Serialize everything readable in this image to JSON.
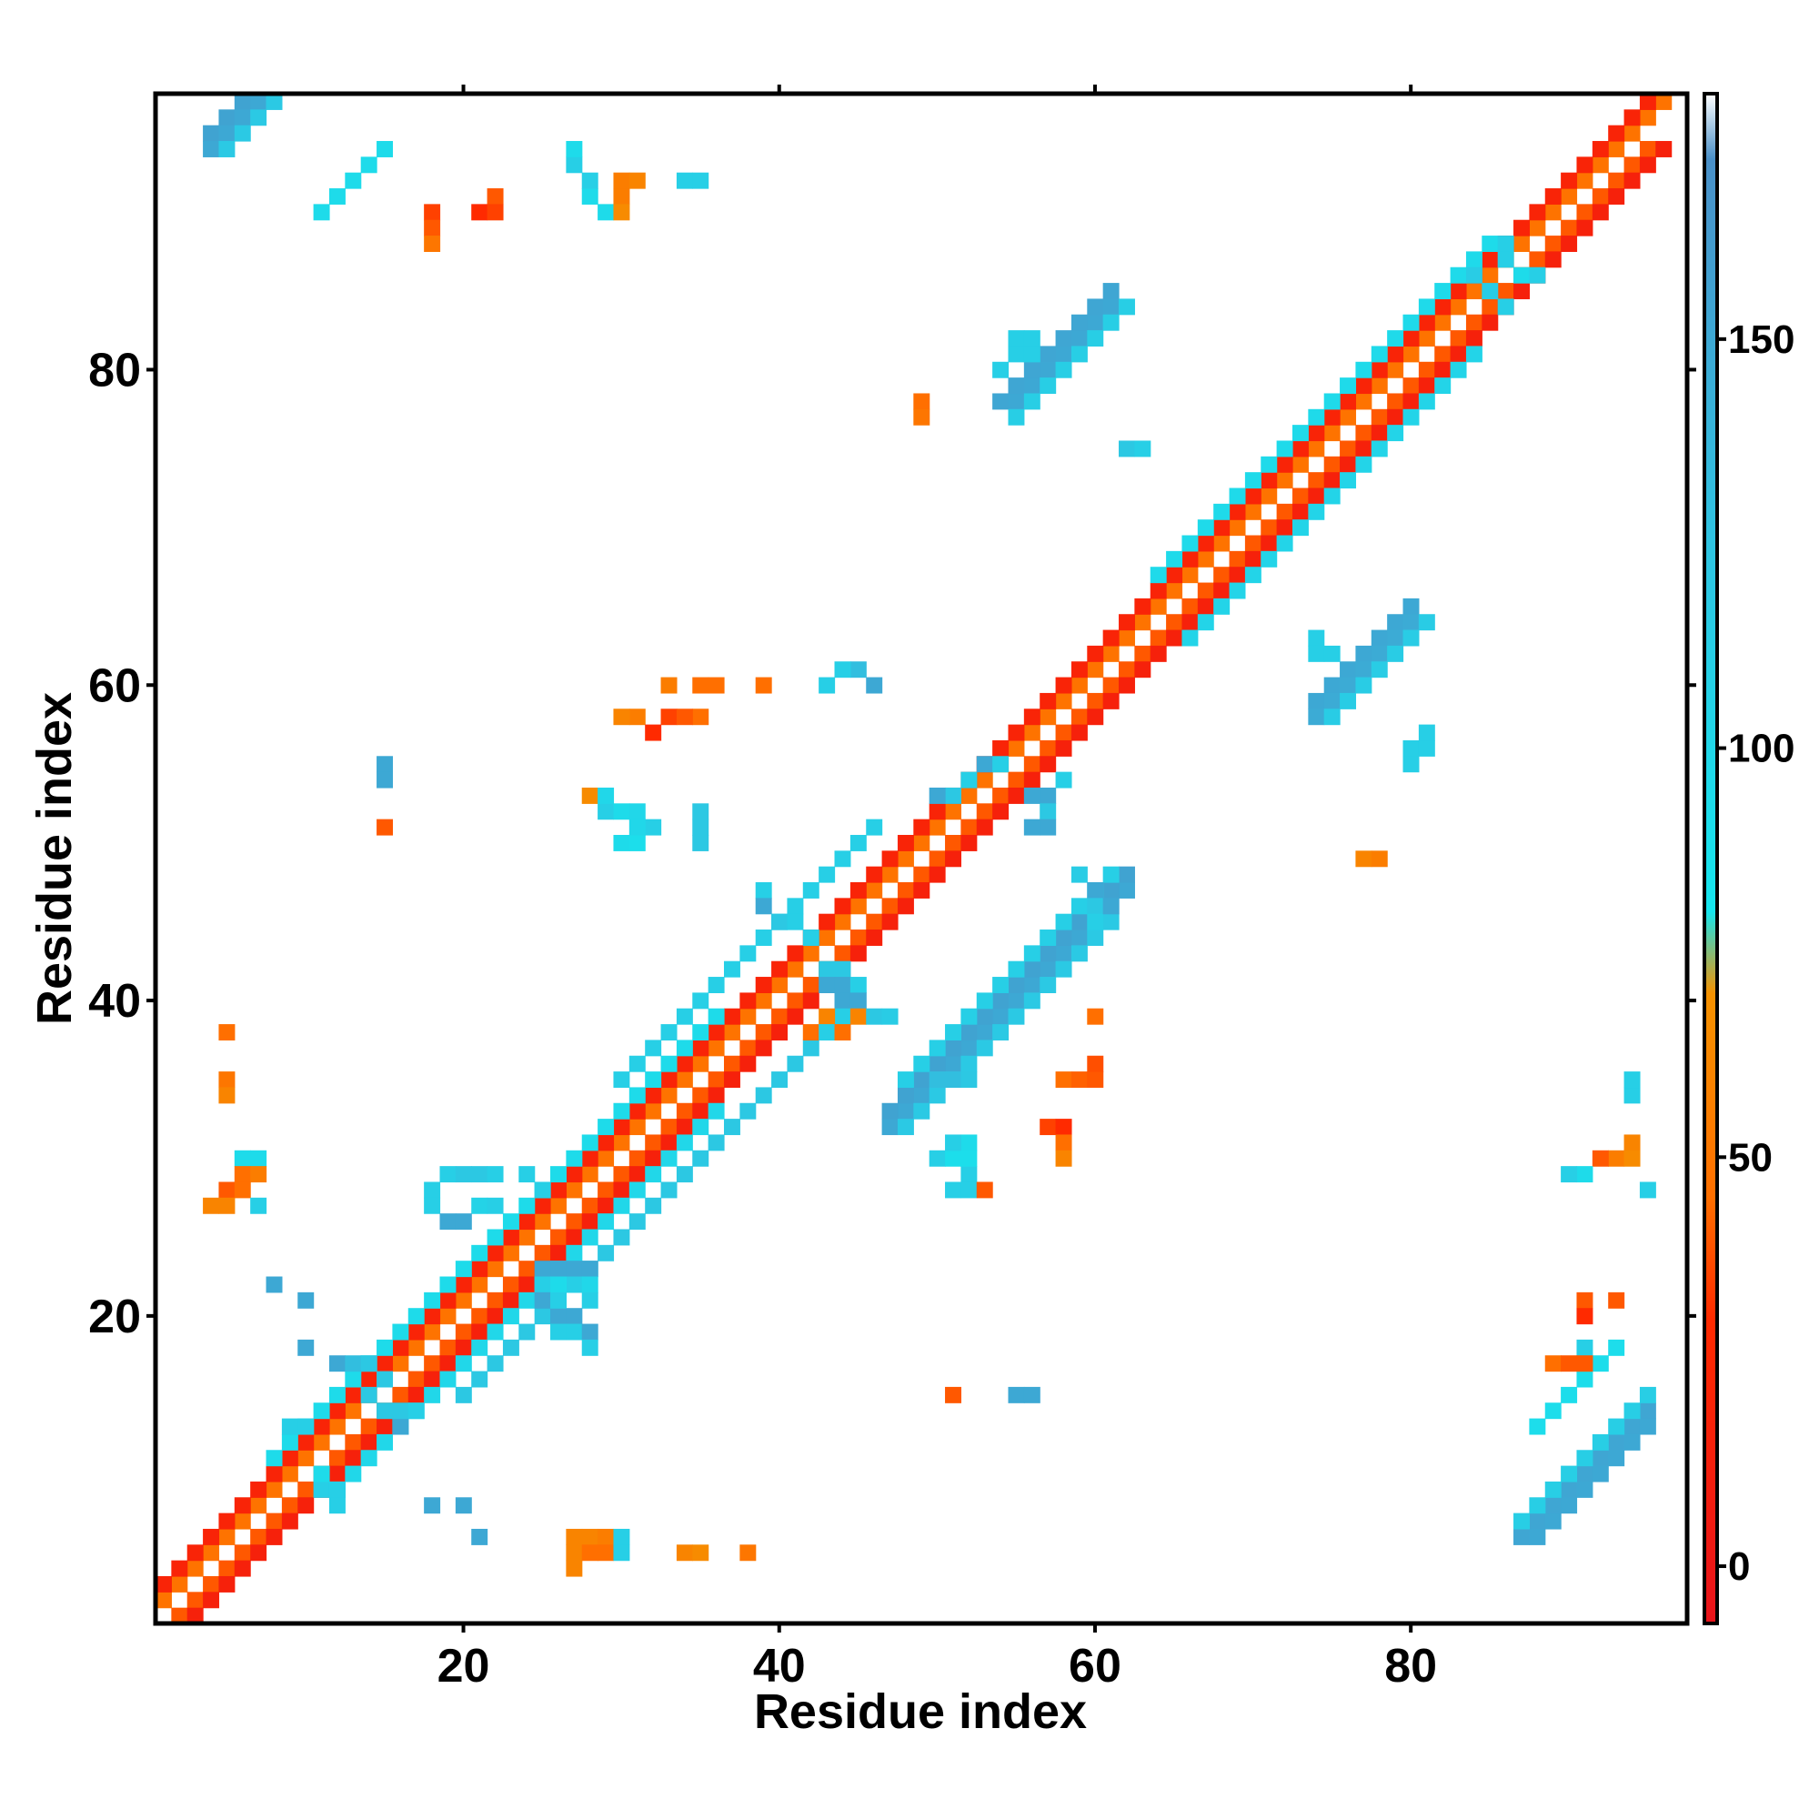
{
  "chart_data": {
    "type": "heatmap",
    "title": "",
    "xlabel": "Residue index",
    "ylabel": "Residue index",
    "xlim": [
      0.5,
      97.5
    ],
    "ylim": [
      0.5,
      97.5
    ],
    "x_ticks": [
      20,
      40,
      60,
      80
    ],
    "y_ticks": [
      20,
      40,
      60,
      80
    ],
    "grid": false,
    "colorbar": {
      "position": "right",
      "range": [
        -7,
        180
      ],
      "ticks": [
        0,
        50,
        100,
        150
      ],
      "stops": [
        {
          "value": -7,
          "color": "#e8141b"
        },
        {
          "value": 30,
          "color": "#ff2a00"
        },
        {
          "value": 45,
          "color": "#ff6f00"
        },
        {
          "value": 70,
          "color": "#f59200"
        },
        {
          "value": 80,
          "color": "#16e6ee"
        },
        {
          "value": 125,
          "color": "#2fc4e2"
        },
        {
          "value": 172,
          "color": "#4a90c8"
        },
        {
          "value": 180,
          "color": "#ffffff"
        }
      ]
    },
    "cell_ranges": [
      {
        "x": [
          1,
          96
        ],
        "y_offset": 1,
        "value": 48
      },
      {
        "x": [
          1,
          95
        ],
        "y_offset": 2,
        "value": 20
      },
      {
        "x": [
          1,
          95
        ],
        "y_offset": -1,
        "value": 40
      },
      {
        "x": [
          2,
          96
        ],
        "y_offset": -2,
        "value": 15
      },
      {
        "x": [
          8,
          36
        ],
        "y_offset": 3,
        "value": 95
      },
      {
        "x": [
          12,
          36
        ],
        "y_offset": -3,
        "value": 100
      },
      {
        "x": [
          64,
          84
        ],
        "y_offset": 3,
        "value": 96
      },
      {
        "x": [
          66,
          84
        ],
        "y_offset": -3,
        "value": 104
      },
      {
        "x": [
          30,
          46
        ],
        "y_offset": 5,
        "value": 110
      },
      {
        "x": [
          20,
          44
        ],
        "y_offset": -5,
        "value": 120
      },
      {
        "x": [
          47,
          62
        ],
        "y_offset": -15,
        "value": 150
      },
      {
        "x": [
          47,
          62
        ],
        "y_offset": -14,
        "value": 155
      },
      {
        "x": [
          48,
          61
        ],
        "y_offset": -13,
        "value": 110
      },
      {
        "x": [
          48,
          61
        ],
        "y_offset": -16,
        "value": 118
      },
      {
        "x": [
          55,
          61
        ],
        "y_offset": 23,
        "value": 150
      },
      {
        "x": [
          54,
          61
        ],
        "y_offset": 24,
        "value": 152
      },
      {
        "x": [
          55,
          62
        ],
        "y_offset": 22,
        "value": 112
      },
      {
        "x": [
          74,
          80
        ],
        "y_offset": -15,
        "value": 150
      },
      {
        "x": [
          74,
          80
        ],
        "y_offset": -16,
        "value": 148
      },
      {
        "x": [
          75,
          81
        ],
        "y_offset": -17,
        "value": 115
      },
      {
        "x": [
          4,
          13
        ],
        "y_offset": 91,
        "value": 155
      },
      {
        "x": [
          4,
          13
        ],
        "y_offset": 90,
        "value": 150
      },
      {
        "x": [
          5,
          14
        ],
        "y_offset": 89,
        "value": 118
      },
      {
        "x": [
          11,
          15
        ],
        "y_offset": 79,
        "value": 95
      },
      {
        "x": [
          87,
          95
        ],
        "y_offset": -81,
        "value": 152
      },
      {
        "x": [
          88,
          95
        ],
        "y_offset": -82,
        "value": 150
      },
      {
        "x": [
          87,
          95
        ],
        "y_offset": -80,
        "value": 112
      },
      {
        "x": [
          88,
          93
        ],
        "y_offset": -75,
        "value": 92
      }
    ],
    "cells": [
      [
        28,
        91,
        95
      ],
      [
        28,
        92,
        110
      ],
      [
        27,
        93,
        110
      ],
      [
        27,
        94,
        95
      ],
      [
        29,
        90,
        95
      ],
      [
        30,
        92,
        55
      ],
      [
        31,
        92,
        60
      ],
      [
        30,
        91,
        55
      ],
      [
        30,
        90,
        65
      ],
      [
        35,
        92,
        110
      ],
      [
        34,
        92,
        110
      ],
      [
        22,
        91,
        40
      ],
      [
        18,
        90,
        35
      ],
      [
        18,
        89,
        40
      ],
      [
        18,
        88,
        50
      ],
      [
        21,
        90,
        30
      ],
      [
        22,
        90,
        35
      ],
      [
        29,
        52,
        110
      ],
      [
        30,
        52,
        95
      ],
      [
        31,
        52,
        100
      ],
      [
        32,
        51,
        110
      ],
      [
        30,
        50,
        95
      ],
      [
        31,
        50,
        90
      ],
      [
        35,
        50,
        120
      ],
      [
        35,
        51,
        120
      ],
      [
        35,
        52,
        120
      ],
      [
        31,
        51,
        100
      ],
      [
        28,
        53,
        65
      ],
      [
        29,
        53,
        100
      ],
      [
        33,
        60,
        55
      ],
      [
        35,
        60,
        45
      ],
      [
        36,
        60,
        45
      ],
      [
        39,
        60,
        45
      ],
      [
        31,
        58,
        55
      ],
      [
        32,
        57,
        30
      ],
      [
        30,
        58,
        60
      ],
      [
        33,
        58,
        35
      ],
      [
        35,
        58,
        45
      ],
      [
        34,
        58,
        40
      ],
      [
        15,
        55,
        150
      ],
      [
        15,
        54,
        150
      ],
      [
        15,
        51,
        40
      ],
      [
        49,
        78,
        45
      ],
      [
        49,
        77,
        50
      ],
      [
        77,
        49,
        60
      ],
      [
        78,
        49,
        55
      ],
      [
        60,
        39,
        45
      ],
      [
        58,
        35,
        45
      ],
      [
        59,
        35,
        42
      ],
      [
        60,
        35,
        40
      ],
      [
        60,
        36,
        38
      ],
      [
        50,
        35,
        130
      ],
      [
        51,
        35,
        130
      ],
      [
        52,
        35,
        120
      ],
      [
        57,
        32,
        35
      ],
      [
        58,
        32,
        30
      ],
      [
        58,
        31,
        45
      ],
      [
        58,
        30,
        60
      ],
      [
        50,
        30,
        110
      ],
      [
        51,
        30,
        90
      ],
      [
        52,
        31,
        95
      ],
      [
        52,
        29,
        110
      ],
      [
        51,
        28,
        110
      ],
      [
        52,
        28,
        110
      ],
      [
        53,
        28,
        40
      ],
      [
        51,
        31,
        110
      ],
      [
        52,
        30,
        90
      ],
      [
        5,
        38,
        45
      ],
      [
        5,
        35,
        50
      ],
      [
        5,
        34,
        60
      ],
      [
        6,
        30,
        95
      ],
      [
        7,
        30,
        95
      ],
      [
        6,
        29,
        45
      ],
      [
        7,
        29,
        55
      ],
      [
        5,
        28,
        40
      ],
      [
        6,
        28,
        45
      ],
      [
        4,
        27,
        60
      ],
      [
        5,
        27,
        60
      ],
      [
        7,
        27,
        110
      ],
      [
        8,
        22,
        150
      ],
      [
        10,
        21,
        150
      ],
      [
        10,
        18,
        150
      ],
      [
        19,
        29,
        110
      ],
      [
        20,
        29,
        120
      ],
      [
        21,
        29,
        120
      ],
      [
        22,
        29,
        110
      ],
      [
        24,
        29,
        110
      ],
      [
        25,
        28,
        110
      ],
      [
        18,
        28,
        110
      ],
      [
        18,
        27,
        110
      ],
      [
        21,
        27,
        105
      ],
      [
        22,
        27,
        110
      ],
      [
        19,
        26,
        150
      ],
      [
        20,
        26,
        150
      ],
      [
        25,
        23,
        150
      ],
      [
        26,
        23,
        150
      ],
      [
        27,
        23,
        150
      ],
      [
        28,
        23,
        150
      ],
      [
        27,
        22,
        110
      ],
      [
        28,
        22,
        100
      ],
      [
        28,
        21,
        110
      ],
      [
        26,
        20,
        150
      ],
      [
        27,
        20,
        150
      ],
      [
        26,
        19,
        110
      ],
      [
        27,
        19,
        110
      ],
      [
        28,
        19,
        150
      ],
      [
        28,
        18,
        110
      ],
      [
        25,
        22,
        110
      ],
      [
        26,
        22,
        95
      ],
      [
        25,
        21,
        150
      ],
      [
        26,
        21,
        110
      ],
      [
        12,
        17,
        150
      ],
      [
        13,
        17,
        130
      ],
      [
        14,
        17,
        120
      ],
      [
        15,
        16,
        120
      ],
      [
        14,
        15,
        120
      ],
      [
        15,
        14,
        120
      ],
      [
        16,
        13,
        150
      ],
      [
        16,
        14,
        120
      ],
      [
        17,
        14,
        110
      ],
      [
        9,
        13,
        110
      ],
      [
        10,
        13,
        110
      ],
      [
        11,
        9,
        110
      ],
      [
        12,
        9,
        110
      ],
      [
        11,
        10,
        95
      ],
      [
        12,
        8,
        110
      ],
      [
        18,
        8,
        150
      ],
      [
        20,
        8,
        150
      ],
      [
        21,
        6,
        150
      ],
      [
        27,
        6,
        60
      ],
      [
        28,
        6,
        60
      ],
      [
        29,
        6,
        55
      ],
      [
        27,
        5,
        60
      ],
      [
        28,
        5,
        45
      ],
      [
        29,
        5,
        45
      ],
      [
        30,
        6,
        110
      ],
      [
        30,
        5,
        110
      ],
      [
        27,
        4,
        60
      ],
      [
        34,
        5,
        60
      ],
      [
        35,
        5,
        65
      ],
      [
        38,
        5,
        50
      ],
      [
        51,
        15,
        40
      ],
      [
        55,
        15,
        150
      ],
      [
        56,
        15,
        150
      ],
      [
        91,
        21,
        40
      ],
      [
        93,
        21,
        40
      ],
      [
        91,
        20,
        30
      ],
      [
        91,
        18,
        110
      ],
      [
        89,
        17,
        45
      ],
      [
        90,
        17,
        40
      ],
      [
        91,
        17,
        40
      ],
      [
        94,
        34,
        110
      ],
      [
        94,
        35,
        110
      ],
      [
        94,
        31,
        60
      ],
      [
        93,
        30,
        55
      ],
      [
        92,
        30,
        40
      ],
      [
        91,
        29,
        95
      ],
      [
        94,
        30,
        65
      ],
      [
        90,
        29,
        110
      ],
      [
        95,
        28,
        110
      ],
      [
        39,
        47,
        110
      ],
      [
        39,
        46,
        150
      ],
      [
        40,
        45,
        120
      ],
      [
        41,
        45,
        110
      ],
      [
        42,
        44,
        110
      ],
      [
        43,
        42,
        120
      ],
      [
        44,
        42,
        120
      ],
      [
        43,
        41,
        150
      ],
      [
        44,
        41,
        150
      ],
      [
        45,
        41,
        110
      ],
      [
        44,
        40,
        150
      ],
      [
        45,
        40,
        150
      ],
      [
        44,
        39,
        110
      ],
      [
        45,
        39,
        60
      ],
      [
        46,
        39,
        120
      ],
      [
        47,
        39,
        115
      ],
      [
        43,
        39,
        60
      ],
      [
        42,
        38,
        45
      ],
      [
        43,
        38,
        110
      ],
      [
        44,
        38,
        45
      ],
      [
        46,
        60,
        150
      ],
      [
        45,
        61,
        130
      ],
      [
        44,
        61,
        110
      ],
      [
        43,
        60,
        110
      ],
      [
        52,
        54,
        110
      ],
      [
        51,
        53,
        120
      ],
      [
        50,
        53,
        150
      ],
      [
        53,
        55,
        150
      ],
      [
        54,
        55,
        110
      ],
      [
        56,
        53,
        150
      ],
      [
        57,
        53,
        150
      ],
      [
        58,
        54,
        110
      ],
      [
        57,
        52,
        120
      ],
      [
        56,
        51,
        150
      ],
      [
        57,
        51,
        150
      ],
      [
        59,
        48,
        115
      ],
      [
        60,
        47,
        150
      ],
      [
        60,
        46,
        120
      ],
      [
        60,
        45,
        110
      ],
      [
        61,
        46,
        150
      ],
      [
        62,
        75,
        120
      ],
      [
        63,
        75,
        110
      ],
      [
        55,
        82,
        110
      ],
      [
        56,
        82,
        110
      ],
      [
        55,
        81,
        110
      ],
      [
        56,
        81,
        110
      ],
      [
        54,
        80,
        110
      ],
      [
        74,
        63,
        110
      ],
      [
        74,
        62,
        110
      ],
      [
        75,
        62,
        110
      ],
      [
        80,
        56,
        110
      ],
      [
        81,
        56,
        110
      ],
      [
        81,
        57,
        110
      ],
      [
        80,
        55,
        110
      ],
      [
        85,
        88,
        95
      ],
      [
        86,
        88,
        110
      ],
      [
        86,
        87,
        110
      ],
      [
        84,
        86,
        115
      ],
      [
        85,
        85,
        115
      ],
      [
        86,
        84,
        110
      ],
      [
        87,
        86,
        95
      ],
      [
        88,
        86,
        110
      ]
    ]
  }
}
